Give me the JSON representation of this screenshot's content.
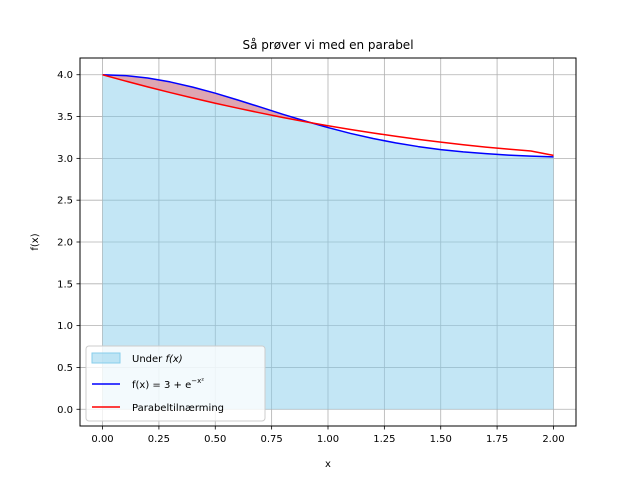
{
  "chart_data": {
    "type": "line",
    "title": "Så prøver vi med en parabel",
    "xlabel": "x",
    "ylabel": "f(x)",
    "xlim": [
      -0.1,
      2.1
    ],
    "ylim": [
      -0.2,
      4.2
    ],
    "xticks": [
      0.0,
      0.25,
      0.5,
      0.75,
      1.0,
      1.25,
      1.5,
      1.75,
      2.0
    ],
    "xtick_labels": [
      "0.00",
      "0.25",
      "0.50",
      "0.75",
      "1.00",
      "1.25",
      "1.50",
      "1.75",
      "2.00"
    ],
    "yticks": [
      0.0,
      0.5,
      1.0,
      1.5,
      2.0,
      2.5,
      3.0,
      3.5,
      4.0
    ],
    "ytick_labels": [
      "0.0",
      "0.5",
      "1.0",
      "1.5",
      "2.0",
      "2.5",
      "3.0",
      "3.5",
      "4.0"
    ],
    "grid": true,
    "legend_position": "lower-left",
    "x": [
      0.0,
      0.1,
      0.2,
      0.3,
      0.4,
      0.5,
      0.6,
      0.7,
      0.8,
      0.9,
      1.0,
      1.1,
      1.2,
      1.3,
      1.4,
      1.5,
      1.6,
      1.7,
      1.8,
      1.9,
      2.0
    ],
    "series": [
      {
        "name": "Under f(x)",
        "kind": "area",
        "color": "#87ceeb",
        "values": [
          4.0,
          3.99,
          3.961,
          3.914,
          3.852,
          3.779,
          3.698,
          3.613,
          3.527,
          3.445,
          3.368,
          3.298,
          3.237,
          3.185,
          3.141,
          3.105,
          3.077,
          3.056,
          3.039,
          3.027,
          3.018
        ]
      },
      {
        "name": "f(x) = 3 + e^(−x²)",
        "kind": "line",
        "color": "#0000ff",
        "values": [
          4.0,
          3.99,
          3.961,
          3.914,
          3.852,
          3.779,
          3.698,
          3.613,
          3.527,
          3.445,
          3.368,
          3.298,
          3.237,
          3.185,
          3.141,
          3.105,
          3.077,
          3.056,
          3.039,
          3.027,
          3.018
        ]
      },
      {
        "name": "Parabeltilnærming",
        "kind": "line",
        "color": "#ff0000",
        "values": [
          4.0,
          3.926,
          3.855,
          3.787,
          3.722,
          3.659,
          3.6,
          3.543,
          3.489,
          3.438,
          3.39,
          3.345,
          3.303,
          3.264,
          3.227,
          3.194,
          3.163,
          3.135,
          3.11,
          3.088,
          3.036
        ]
      }
    ]
  },
  "legend": {
    "under_label": "Under ",
    "under_label_fx": "f(x)",
    "f_label_prefix": "f(x) = 3 + e",
    "f_label_exp": "−x²",
    "parabel_label": "Parabeltilnærming"
  },
  "colors": {
    "fill": "#87ceeb",
    "diff_fill": "#e39aa6",
    "f_line": "#0000ff",
    "parabel_line": "#ff0000",
    "grid": "#b0b0b0"
  }
}
